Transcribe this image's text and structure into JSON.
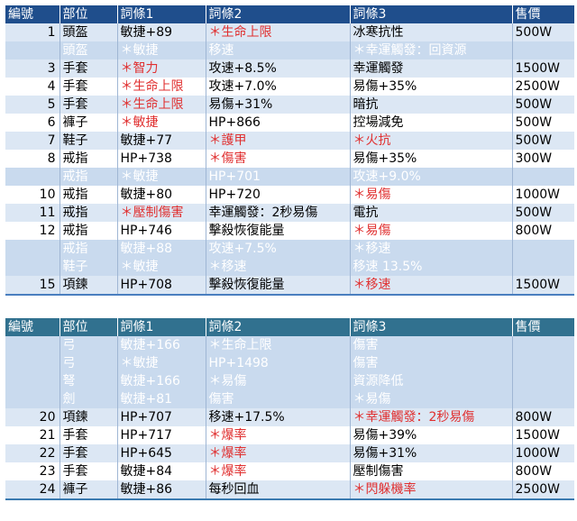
{
  "table1": {
    "headers": [
      "編號",
      "部位",
      "詞條1",
      "詞條2",
      "詞條3",
      "售價"
    ],
    "rows": [
      {
        "num": "1",
        "slot": "頭盔",
        "a1": "敏捷+89",
        "a2": "＊生命上限",
        "a3": "冰寒抗性",
        "price": "500W",
        "faded": false,
        "red": [
          false,
          true,
          false
        ]
      },
      {
        "num": "",
        "slot": "頭盔",
        "a1": "＊敏捷",
        "a2": "移速",
        "a3": "＊幸運觸發：回資源",
        "price": "",
        "faded": true,
        "red": [
          true,
          false,
          true
        ]
      },
      {
        "num": "3",
        "slot": "手套",
        "a1": "＊智力",
        "a2": "攻速+8.5%",
        "a3": "幸運觸發",
        "price": "1500W",
        "faded": false,
        "red": [
          true,
          false,
          false
        ]
      },
      {
        "num": "4",
        "slot": "手套",
        "a1": "＊生命上限",
        "a2": "攻速+7.0%",
        "a3": "易傷+35%",
        "price": "2500W",
        "faded": false,
        "red": [
          true,
          false,
          false
        ]
      },
      {
        "num": "5",
        "slot": "手套",
        "a1": "＊生命上限",
        "a2": "易傷+31%",
        "a3": "暗抗",
        "price": "500W",
        "faded": false,
        "red": [
          true,
          false,
          false
        ]
      },
      {
        "num": "6",
        "slot": "褲子",
        "a1": "＊敏捷",
        "a2": "HP+866",
        "a3": "控場減免",
        "price": "500W",
        "faded": false,
        "red": [
          true,
          false,
          false
        ]
      },
      {
        "num": "7",
        "slot": "鞋子",
        "a1": "敏捷+77",
        "a2": "＊護甲",
        "a3": "＊火抗",
        "price": "500W",
        "faded": false,
        "red": [
          false,
          true,
          true
        ]
      },
      {
        "num": "8",
        "slot": "戒指",
        "a1": "HP+738",
        "a2": "＊傷害",
        "a3": "易傷+35%",
        "price": "300W",
        "faded": false,
        "red": [
          false,
          true,
          false
        ]
      },
      {
        "num": "",
        "slot": "戒指",
        "a1": "＊敏捷",
        "a2": "HP+701",
        "a3": "攻速+9.0%",
        "price": "",
        "faded": true,
        "red": [
          true,
          false,
          false
        ]
      },
      {
        "num": "10",
        "slot": "戒指",
        "a1": "敏捷+80",
        "a2": "HP+720",
        "a3": "＊易傷",
        "price": "1000W",
        "faded": false,
        "red": [
          false,
          false,
          true
        ]
      },
      {
        "num": "11",
        "slot": "戒指",
        "a1": "＊壓制傷害",
        "a2": "幸運觸發：2秒易傷",
        "a3": "電抗",
        "price": "500W",
        "faded": false,
        "red": [
          true,
          false,
          false
        ]
      },
      {
        "num": "12",
        "slot": "戒指",
        "a1": "HP+746",
        "a2": "擊殺恢復能量",
        "a3": " ＊易傷",
        "price": "800W",
        "faded": false,
        "red": [
          false,
          false,
          true
        ]
      },
      {
        "num": "",
        "slot": "戒指",
        "a1": "敏捷+88",
        "a2": "攻速+7.5%",
        "a3": " ＊移速",
        "price": "",
        "faded": true,
        "red": [
          false,
          false,
          true
        ]
      },
      {
        "num": "",
        "slot": "鞋子",
        "a1": "＊敏捷",
        "a2": "＊移速",
        "a3": "移速 13.5%",
        "price": "",
        "faded": true,
        "red": [
          true,
          true,
          false
        ]
      },
      {
        "num": "15",
        "slot": "項鍊",
        "a1": "HP+708",
        "a2": "擊殺恢復能量",
        "a3": " ＊移速",
        "price": "1500W",
        "faded": false,
        "red": [
          false,
          false,
          true
        ]
      }
    ]
  },
  "table2": {
    "headers": [
      "編號",
      "部位",
      "詞條1",
      "詞條2",
      "詞條3",
      "售價"
    ],
    "rows": [
      {
        "num": "",
        "slot": "弓",
        "a1": "敏捷+166",
        "a2": "＊生命上限",
        "a3": "傷害",
        "price": "",
        "faded": true,
        "red": [
          false,
          true,
          false
        ]
      },
      {
        "num": "",
        "slot": "弓",
        "a1": "＊敏捷",
        "a2": "HP+1498",
        "a3": "傷害",
        "price": "",
        "faded": true,
        "red": [
          true,
          false,
          false
        ]
      },
      {
        "num": "",
        "slot": "弩",
        "a1": "敏捷+166",
        "a2": "＊易傷",
        "a3": "資源降低",
        "price": "",
        "faded": true,
        "red": [
          false,
          true,
          false
        ]
      },
      {
        "num": "",
        "slot": "劍",
        "a1": "敏捷+81",
        "a2": "傷害",
        "a3": "＊易傷",
        "price": "",
        "faded": true,
        "red": [
          false,
          false,
          true
        ]
      },
      {
        "num": "20",
        "slot": "項鍊",
        "a1": "HP+707",
        "a2": "移速+17.5%",
        "a3": " ＊幸運觸發：2秒易傷",
        "price": "800W",
        "faded": false,
        "red": [
          false,
          false,
          true
        ]
      },
      {
        "num": "21",
        "slot": "手套",
        "a1": "HP+717",
        "a2": "＊爆率",
        "a3": "易傷+39%",
        "price": "1500W",
        "faded": false,
        "red": [
          false,
          true,
          false
        ]
      },
      {
        "num": "22",
        "slot": "手套",
        "a1": "HP+645",
        "a2": "＊爆率",
        "a3": "易傷+31%",
        "price": "1000W",
        "faded": false,
        "red": [
          false,
          true,
          false
        ]
      },
      {
        "num": "23",
        "slot": "手套",
        "a1": "敏捷+84",
        "a2": "＊爆率",
        "a3": "壓制傷害",
        "price": "800W",
        "faded": false,
        "red": [
          false,
          true,
          false
        ]
      },
      {
        "num": "24",
        "slot": "褲子",
        "a1": "敏捷+86",
        "a2": "每秒回血",
        "a3": "＊閃躲機率",
        "price": "2500W",
        "faded": false,
        "red": [
          false,
          false,
          true
        ]
      }
    ]
  }
}
